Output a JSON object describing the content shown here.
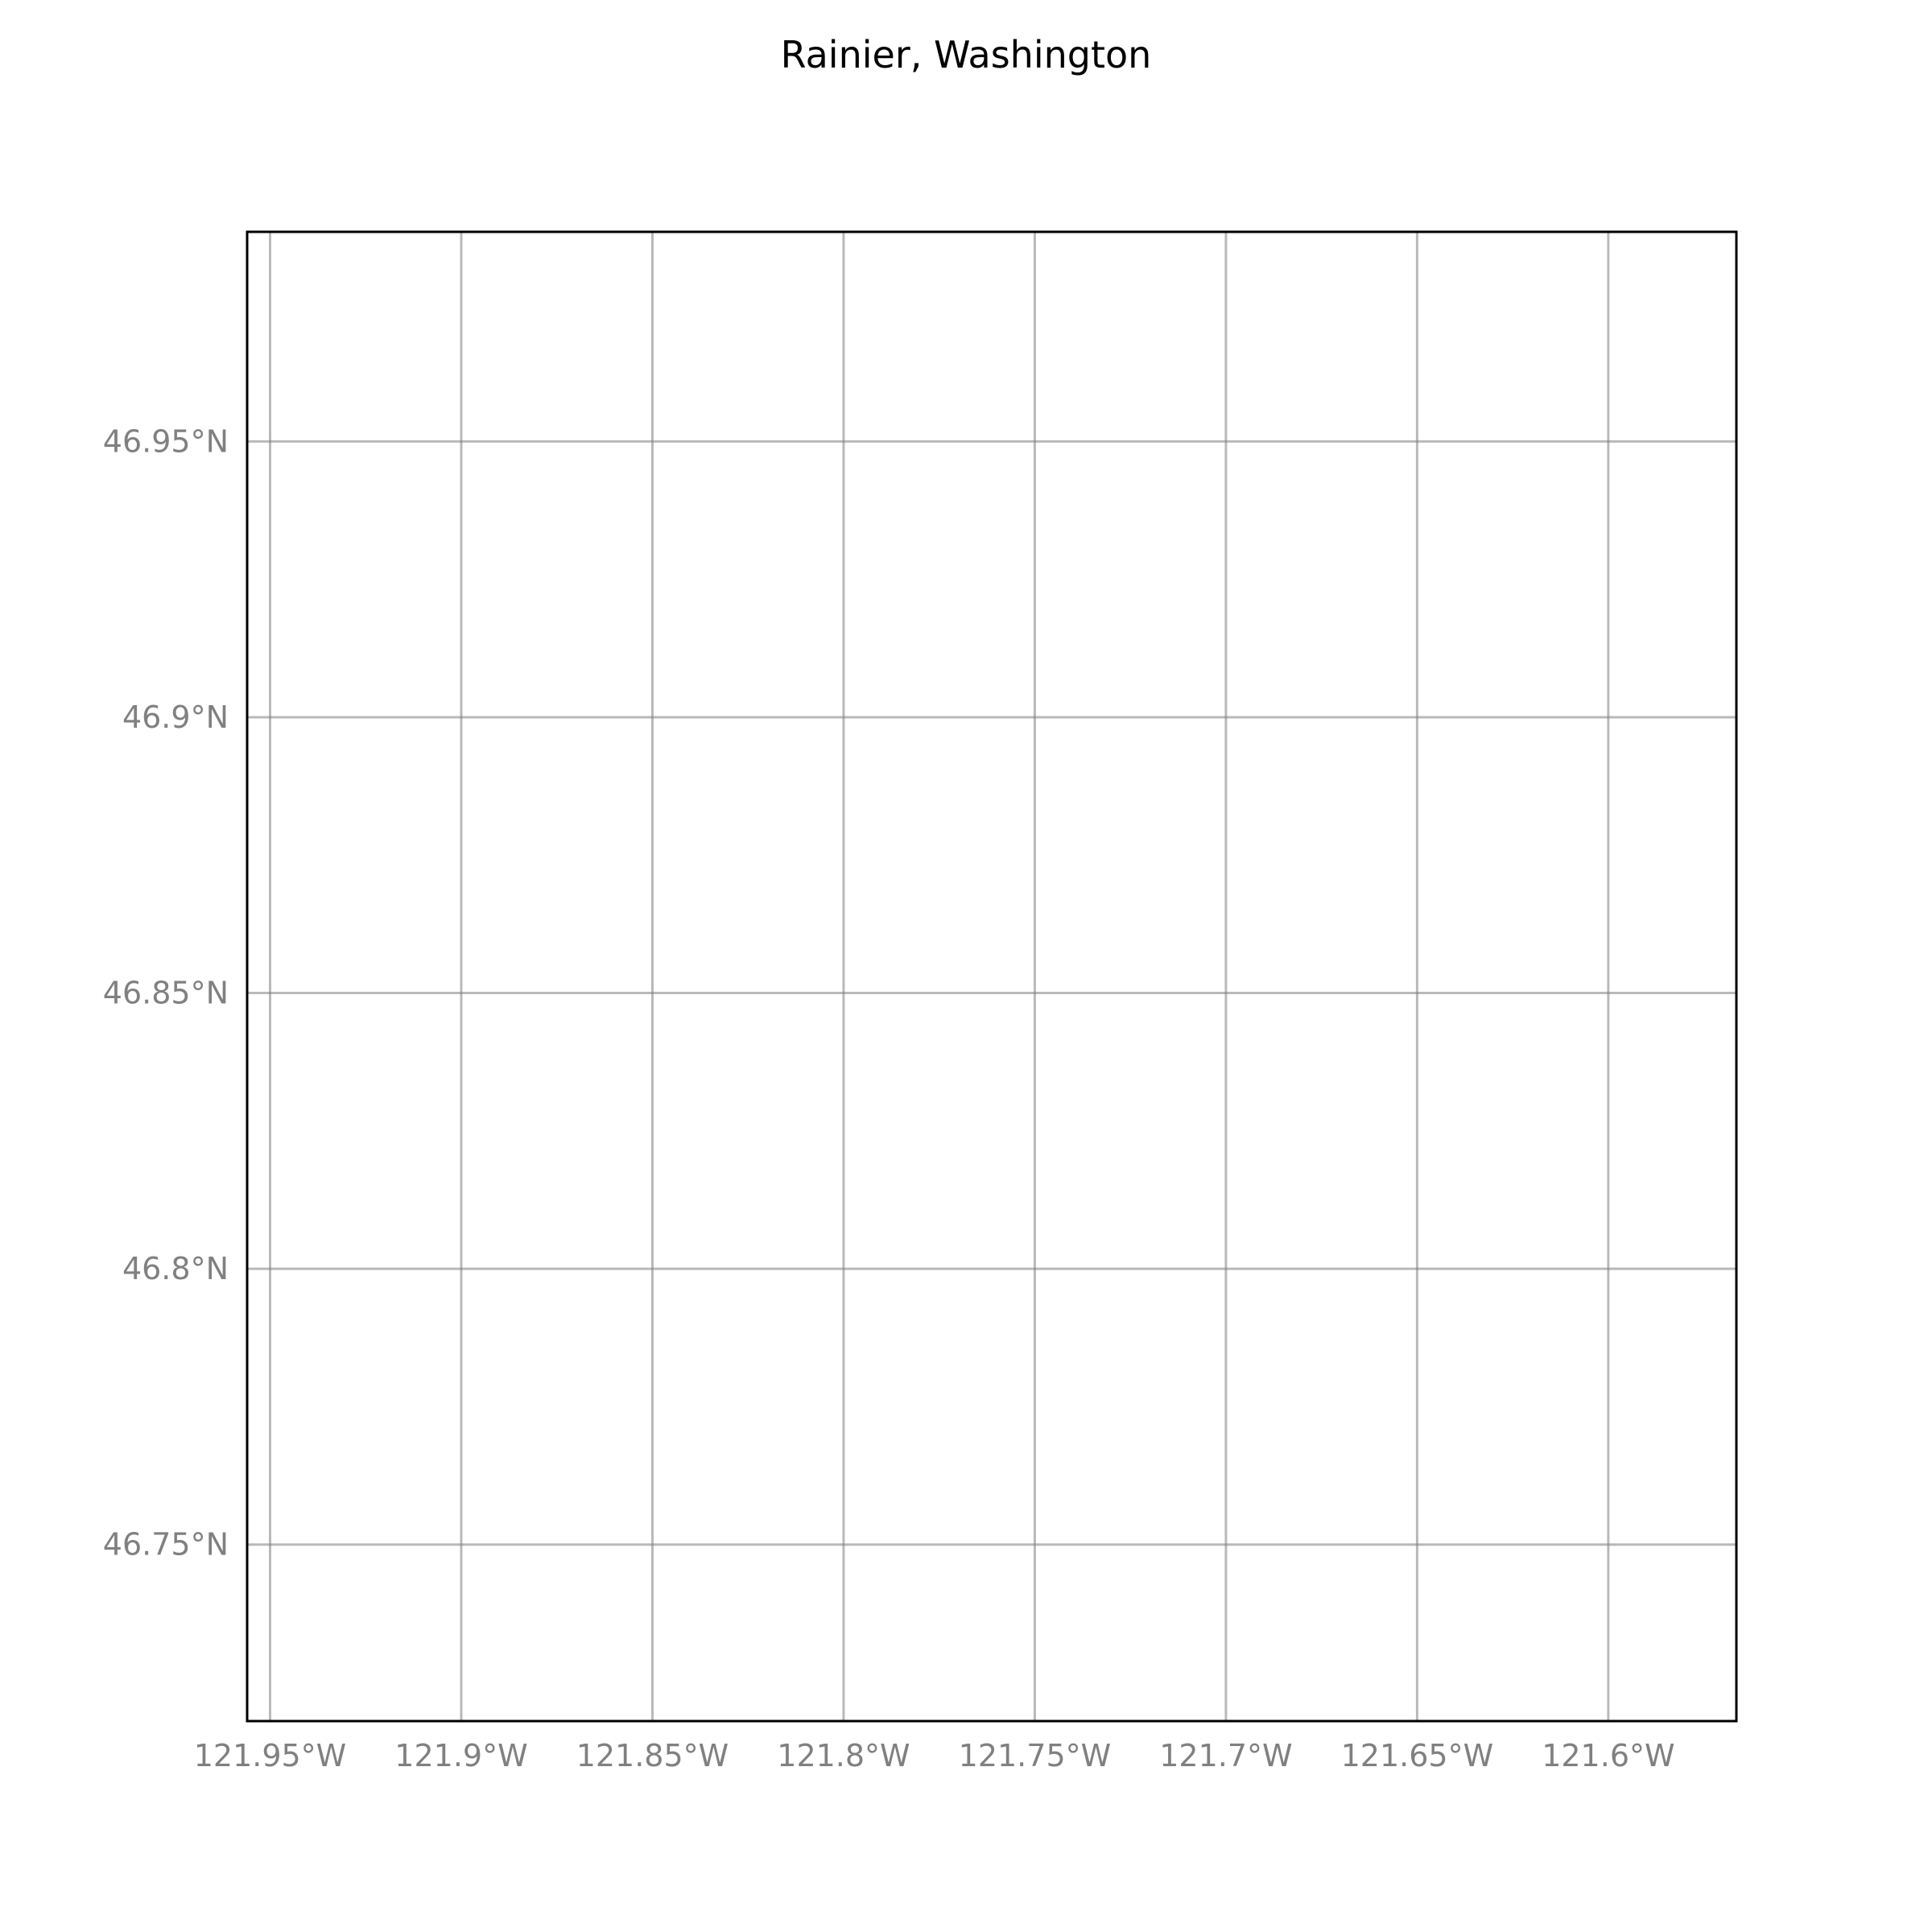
{
  "map": {
    "title": "Rainier, Washington",
    "extent": {
      "lon_min": -121.956,
      "lon_max": -121.5665,
      "lat_min": 46.718,
      "lat_max": 46.988
    },
    "gridlines": {
      "longitudes": [
        -121.95,
        -121.9,
        -121.85,
        -121.8,
        -121.75,
        -121.7,
        -121.65,
        -121.6
      ],
      "latitudes": [
        46.95,
        46.9,
        46.85,
        46.8,
        46.75
      ],
      "color": "#808080"
    },
    "x_tick_labels": [
      "121.95°W",
      "121.9°W",
      "121.85°W",
      "121.8°W",
      "121.75°W",
      "121.7°W",
      "121.65°W",
      "121.6°W"
    ],
    "y_tick_labels": [
      "46.95°N",
      "46.9°N",
      "46.85°N",
      "46.8°N",
      "46.75°N"
    ],
    "background_color": "#ffffff",
    "frame_color": "#000000"
  }
}
